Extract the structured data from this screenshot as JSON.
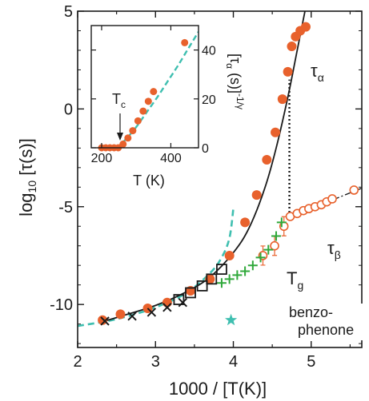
{
  "colors": {
    "orange": "#e8612c",
    "teal": "#3fbfb0",
    "green": "#2fa83a",
    "black": "#1a1a1a"
  },
  "chart_data": [
    {
      "type": "scatter",
      "xlabel": "1000 / [T(K)]",
      "ylabel": "log10 [τ(s)]",
      "ylabel_main": "log",
      "ylabel_sub": "10",
      "ylabel_rest": " [τ(s)]",
      "xlim": [
        2,
        5.65
      ],
      "ylim": [
        -12.2,
        5
      ],
      "x_ticks": [
        2,
        3,
        4,
        5
      ],
      "x_tick_labels": [
        "2",
        "3",
        "4",
        "5"
      ],
      "y_ticks": [
        5,
        0,
        -5,
        -10
      ],
      "y_tick_labels": [
        "5",
        "0",
        "-5",
        "-10"
      ],
      "annotations": {
        "tau_alpha": "τα",
        "tau_alpha_main": "τ",
        "tau_alpha_sub": "α",
        "tau_beta": "τβ",
        "tau_beta_main": "τ",
        "tau_beta_sub": "β",
        "tg": "Tg",
        "tg_main": "T",
        "tg_sub": "g",
        "material_line1": "benzo-",
        "material_line2": "phenone"
      },
      "series": [
        {
          "marker": "filled-circle",
          "color": "#e8612c",
          "x": [
            2.32,
            2.55,
            2.9,
            3.15,
            3.45,
            3.7,
            3.95,
            4.15,
            4.3,
            4.43,
            4.54,
            4.63,
            4.7,
            4.75,
            4.8,
            4.86,
            4.93
          ],
          "y": [
            -10.8,
            -10.5,
            -10.2,
            -9.9,
            -9.3,
            -8.7,
            -7.5,
            -5.8,
            -4.4,
            -2.6,
            -1.2,
            0.5,
            1.9,
            3.2,
            3.7,
            4.0,
            4.2
          ]
        },
        {
          "marker": "open-circle",
          "color": "#e8612c",
          "x": [
            4.38,
            4.53,
            4.65,
            4.73,
            4.82,
            4.9,
            4.97,
            5.05,
            5.13,
            5.2,
            5.27,
            5.55
          ],
          "y": [
            -7.5,
            -7.0,
            -6.0,
            -5.5,
            -5.35,
            -5.2,
            -5.1,
            -5.0,
            -4.9,
            -4.75,
            -4.6,
            -4.15
          ],
          "error_bar_points": [
            0,
            1,
            2
          ]
        },
        {
          "marker": "plus",
          "color": "#2fa83a",
          "x": [
            3.85,
            3.95,
            4.05,
            4.15,
            4.25,
            4.35,
            4.45,
            4.55,
            4.62
          ],
          "y": [
            -8.9,
            -8.7,
            -8.5,
            -8.3,
            -8.0,
            -7.6,
            -7.2,
            -6.5,
            -5.8
          ]
        },
        {
          "marker": "x",
          "color": "#1a1a1a",
          "x": [
            2.35,
            2.7,
            2.95,
            3.15,
            3.35
          ],
          "y": [
            -10.85,
            -10.6,
            -10.4,
            -10.15,
            -9.9
          ]
        },
        {
          "marker": "open-square",
          "color": "#1a1a1a",
          "x": [
            3.3,
            3.45,
            3.6,
            3.72,
            3.85
          ],
          "y": [
            -9.75,
            -9.4,
            -9.05,
            -8.7,
            -8.2
          ]
        },
        {
          "marker": "star",
          "color": "#3fbfb0",
          "x": [
            3.97
          ],
          "y": [
            -10.8
          ]
        }
      ],
      "fits": {
        "vft_black": {
          "x": [
            2.3,
            2.6,
            3.0,
            3.4,
            3.7,
            4.0,
            4.2,
            4.4,
            4.55,
            4.7,
            4.82,
            4.92,
            4.98
          ],
          "y": [
            -10.9,
            -10.55,
            -10.05,
            -9.35,
            -8.6,
            -7.35,
            -6.1,
            -4.1,
            -2.0,
            0.6,
            3.0,
            5.0,
            6.2
          ]
        },
        "teal_dashed": {
          "x": [
            2.0,
            2.5,
            3.0,
            3.4,
            3.7,
            3.85,
            3.95,
            4.0
          ],
          "y": [
            -11.1,
            -10.75,
            -10.15,
            -9.4,
            -8.4,
            -7.6,
            -6.6,
            -5.1
          ]
        },
        "tau_beta_dashdot": {
          "x": [
            4.72,
            5.65
          ],
          "y": [
            -5.55,
            -4.05
          ]
        },
        "tg_dotted_x": 4.72,
        "tg_dotted_y": [
          -5.5,
          1.5
        ]
      }
    },
    {
      "type": "scatter",
      "xlabel": "T (K)",
      "ylabel": "[τα (s)]^(-1/γ)",
      "ylabel_bracket_open": "[",
      "ylabel_tau": "τ",
      "ylabel_tau_sub": "α",
      "ylabel_units": " (s)]",
      "ylabel_exp": "-1/γ",
      "xlim": [
        170,
        480
      ],
      "ylim": [
        0,
        50
      ],
      "x_ticks": [
        200,
        400
      ],
      "x_tick_labels": [
        "200",
        "400"
      ],
      "y_ticks": [
        0,
        20,
        40
      ],
      "y_tick_labels": [
        "0",
        "20",
        "40"
      ],
      "annotation_tc": "Tc",
      "annotation_tc_main": "T",
      "annotation_tc_sub": "c",
      "series": [
        {
          "marker": "filled-circle",
          "color": "#e8612c",
          "x": [
            200,
            212,
            224,
            236,
            248,
            262,
            276,
            290,
            305,
            320,
            335,
            350,
            440
          ],
          "y": [
            0,
            0,
            0,
            0,
            0,
            1.5,
            4,
            7,
            11,
            15,
            19,
            23,
            43
          ]
        }
      ],
      "fits": {
        "teal_dashed": {
          "x": [
            245,
            270,
            300,
            330,
            360,
            390,
            420,
            450,
            480
          ],
          "y": [
            0,
            3.5,
            8.5,
            14.5,
            20.5,
            27,
            33.5,
            40.5,
            47.5
          ]
        }
      }
    }
  ]
}
